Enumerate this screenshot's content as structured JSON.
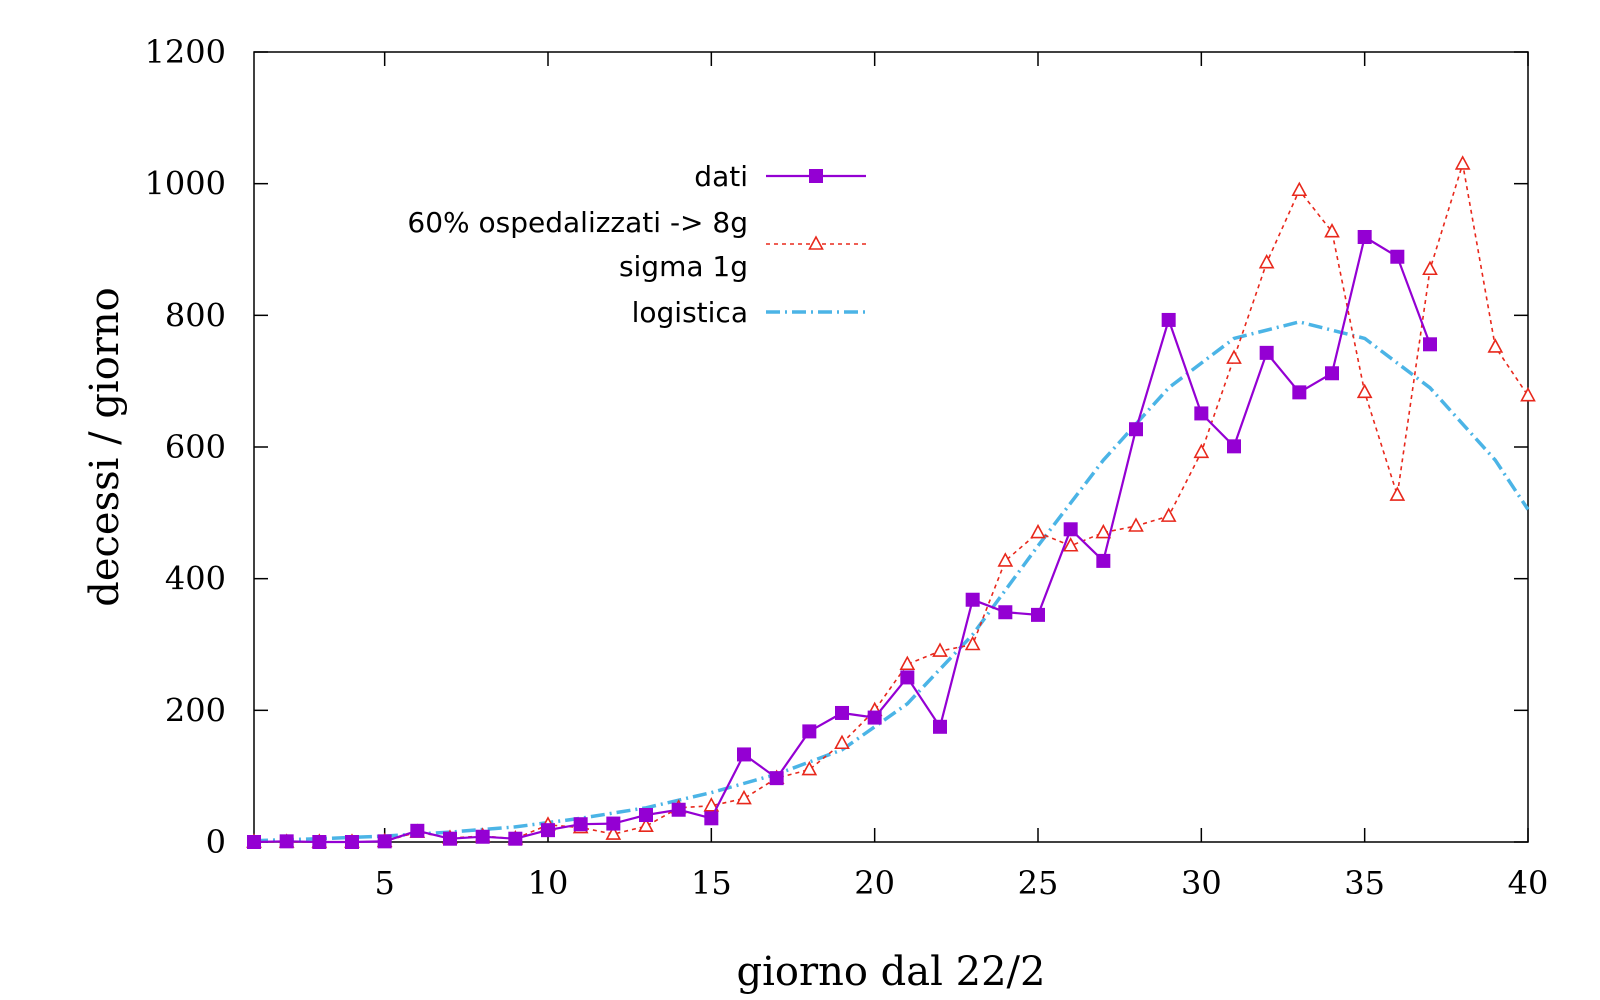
{
  "chart_data": {
    "type": "line",
    "xlabel": "giorno dal 22/2",
    "ylabel": "decessi / giorno",
    "xlim": [
      1,
      40
    ],
    "ylim": [
      0,
      1200
    ],
    "xticks": [
      5,
      10,
      15,
      20,
      25,
      30,
      35,
      40
    ],
    "yticks": [
      0,
      200,
      400,
      600,
      800,
      1000,
      1200
    ],
    "grid": false,
    "legend_position": "top-center",
    "series": [
      {
        "name": "dati",
        "style": "solid-line-filled-square",
        "color": "#9400d3",
        "x": [
          1,
          2,
          3,
          4,
          5,
          6,
          7,
          8,
          9,
          10,
          11,
          12,
          13,
          14,
          15,
          16,
          17,
          18,
          19,
          20,
          21,
          22,
          23,
          24,
          25,
          26,
          27,
          28,
          29,
          30,
          31,
          32,
          33,
          34,
          35,
          36,
          37
        ],
        "y": [
          0,
          1,
          0,
          0,
          1,
          17,
          5,
          8,
          5,
          18,
          27,
          28,
          41,
          49,
          36,
          133,
          97,
          168,
          196,
          189,
          250,
          175,
          368,
          349,
          345,
          475,
          427,
          627,
          793,
          651,
          601,
          743,
          683,
          712,
          919,
          889,
          756
        ]
      },
      {
        "name": "60% ospedalizzati -> 8g sigma 1g",
        "legend_lines": [
          "60% ospedalizzati -> 8g",
          "sigma 1g"
        ],
        "style": "dotted-line-open-triangle",
        "color": "#e8281c",
        "x": [
          1,
          2,
          3,
          4,
          5,
          6,
          7,
          8,
          9,
          10,
          11,
          12,
          13,
          14,
          15,
          16,
          17,
          18,
          19,
          20,
          21,
          22,
          23,
          24,
          25,
          26,
          27,
          28,
          29,
          30,
          31,
          32,
          33,
          34,
          35,
          36,
          37,
          38,
          39,
          40
        ],
        "y": [
          0,
          0,
          0,
          0,
          1,
          15,
          6,
          9,
          5,
          26,
          22,
          12,
          24,
          52,
          55,
          66,
          97,
          110,
          150,
          200,
          270,
          290,
          300,
          427,
          470,
          450,
          470,
          480,
          495,
          592,
          735,
          880,
          990,
          927,
          683,
          527,
          870,
          1030,
          752,
          678
        ]
      },
      {
        "name": "logistica",
        "style": "dash-dot-line",
        "color": "#4bb4e6",
        "x": [
          1,
          3,
          5,
          7,
          9,
          11,
          13,
          15,
          17,
          19,
          21,
          23,
          25,
          27,
          29,
          31,
          33,
          35,
          37,
          39,
          40
        ],
        "y": [
          2,
          5,
          9,
          15,
          23,
          36,
          52,
          75,
          103,
          140,
          210,
          315,
          450,
          580,
          690,
          765,
          790,
          765,
          690,
          580,
          505
        ]
      }
    ]
  }
}
